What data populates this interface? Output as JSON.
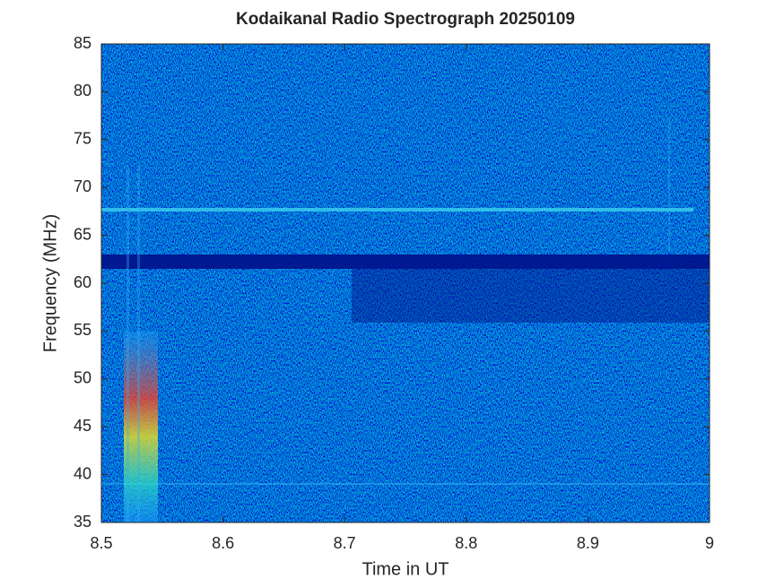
{
  "chart_data": {
    "type": "heatmap",
    "title": "Kodaikanal Radio Spectrograph  20250109",
    "xlabel": "Time in UT",
    "ylabel": "Frequency (MHz)",
    "xlim": [
      8.5,
      9
    ],
    "xticks": [
      8.5,
      8.6,
      8.7,
      8.8,
      8.9,
      9
    ],
    "ylim": [
      35,
      85
    ],
    "yticks": [
      35,
      40,
      45,
      50,
      55,
      60,
      65,
      70,
      75,
      80,
      85
    ]
  }
}
